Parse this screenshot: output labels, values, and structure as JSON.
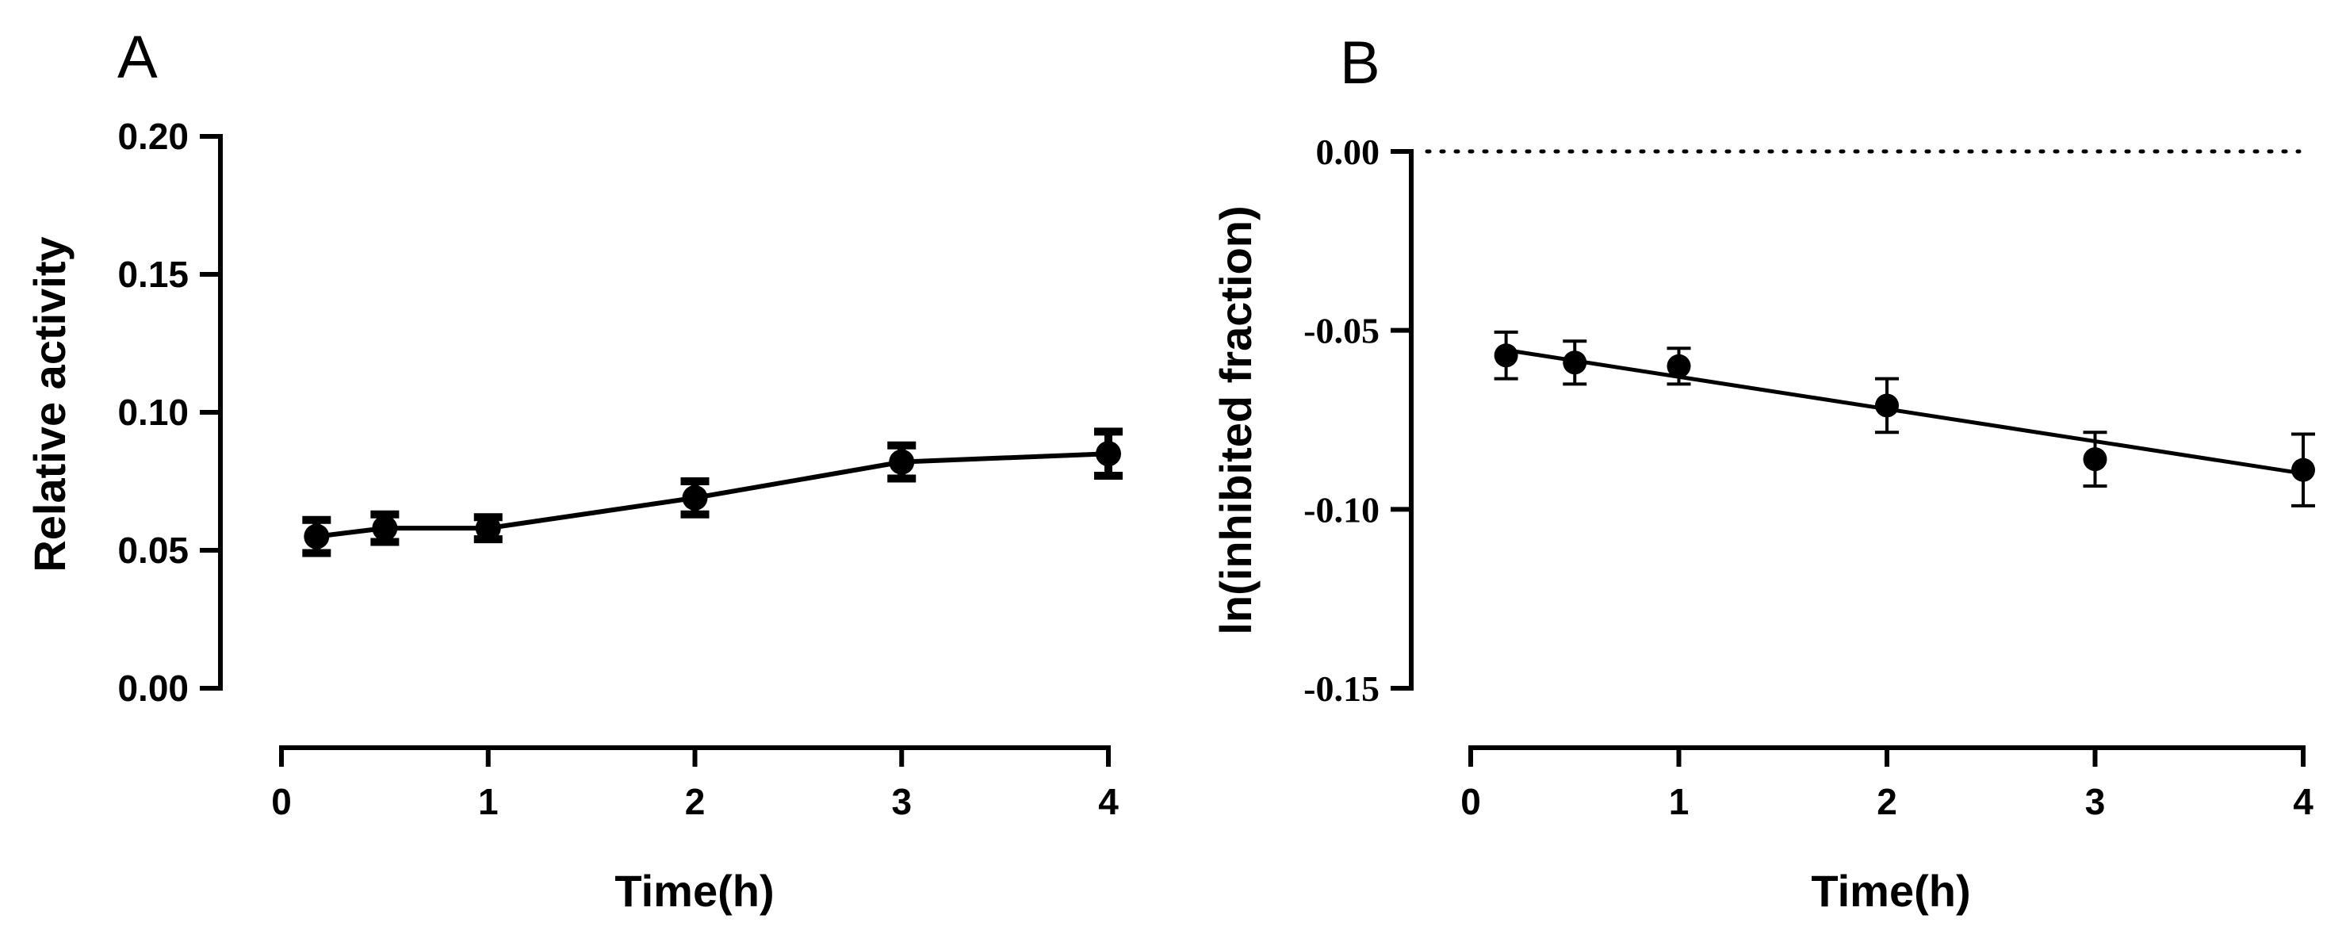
{
  "chart_data": [
    {
      "panel": "A",
      "type": "line",
      "title": "",
      "xlabel": "Time(h)",
      "ylabel": "Relative activity",
      "xlim": [
        0,
        4
      ],
      "ylim": [
        0,
        0.2
      ],
      "xticks": [
        0,
        1,
        2,
        3,
        4
      ],
      "xtick_labels": [
        "0",
        "1",
        "2",
        "3",
        "4"
      ],
      "yticks": [
        0,
        0.05,
        0.1,
        0.15,
        0.2
      ],
      "ytick_labels": [
        "0.00",
        "0.05",
        "0.10",
        "0.15",
        "0.20"
      ],
      "grid": false,
      "series": [
        {
          "name": "Relative activity",
          "x": [
            0.17,
            0.5,
            1,
            2,
            3,
            4
          ],
          "y": [
            0.055,
            0.058,
            0.058,
            0.069,
            0.082,
            0.085
          ],
          "error": [
            0.006,
            0.005,
            0.004,
            0.006,
            0.006,
            0.008
          ]
        }
      ]
    },
    {
      "panel": "B",
      "type": "line",
      "title": "",
      "xlabel": "Time(h)",
      "ylabel": "ln(inhibited fraction)",
      "xlim": [
        0,
        4
      ],
      "ylim": [
        -0.15,
        0
      ],
      "xticks": [
        0,
        1,
        2,
        3,
        4
      ],
      "xtick_labels": [
        "0",
        "1",
        "2",
        "3",
        "4"
      ],
      "yticks": [
        0,
        -0.05,
        -0.1,
        -0.15
      ],
      "ytick_labels": [
        "0.00",
        "-0.05",
        "-0.10",
        "-0.15"
      ],
      "grid": false,
      "reference_line": {
        "y": 0,
        "style": "dotted"
      },
      "series": [
        {
          "name": "ln(inhibited fraction)",
          "x": [
            0.17,
            0.5,
            1,
            2,
            3,
            4
          ],
          "y": [
            -0.057,
            -0.059,
            -0.06,
            -0.071,
            -0.086,
            -0.089
          ],
          "error": [
            0.0065,
            0.006,
            0.005,
            0.0075,
            0.0075,
            0.01
          ]
        }
      ],
      "fit_line": {
        "x": [
          0.17,
          4
        ],
        "y": [
          -0.0555,
          -0.09
        ]
      }
    }
  ]
}
